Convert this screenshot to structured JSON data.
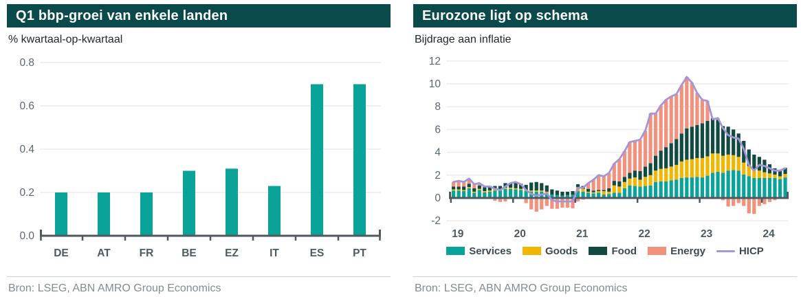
{
  "colors": {
    "header_bg": "#0a4a4a",
    "axis": "#4e585e",
    "grid": "#ececec",
    "tick_text": "#5b6770",
    "category_text": "#4e5a62",
    "subtitle_text": "#20282b",
    "source_text": "#858c90",
    "divider": "#ccd1d3"
  },
  "chart_data": [
    {
      "type": "bar",
      "title": "Q1 bbp-groei van enkele landen",
      "ylabel": "% kwartaal-op-kwartaal",
      "source": "Bron: LSEG, ABN AMRO Group Economics",
      "categories": [
        "DE",
        "AT",
        "FR",
        "BE",
        "EZ",
        "IT",
        "ES",
        "PT"
      ],
      "values": [
        0.2,
        0.2,
        0.2,
        0.3,
        0.31,
        0.23,
        0.7,
        0.7
      ],
      "ylim": [
        0,
        0.8
      ],
      "yticks": [
        0,
        0.2,
        0.4,
        0.6,
        0.8
      ],
      "bar_color": "#09a39a",
      "grid": true,
      "legend_position": "none"
    },
    {
      "type": "stacked-bar-line",
      "title": "Eurozone ligt op schema",
      "ylabel": "Bijdrage aan inflatie",
      "source": "Bron: LSEG, ABN AMRO Group Economics",
      "x_start": "2019-01",
      "x_freq": "monthly",
      "x_tick_labels": [
        "19",
        "20",
        "21",
        "22",
        "23",
        "24"
      ],
      "x_tick_month_index": [
        0,
        12,
        24,
        36,
        48,
        60
      ],
      "ylim": [
        -2,
        12
      ],
      "yticks": [
        -2,
        0,
        2,
        4,
        6,
        8,
        10,
        12
      ],
      "grid": true,
      "legend_position": "bottom",
      "series": [
        {
          "name": "Services",
          "color": "#09a39a",
          "values": [
            0.65,
            0.65,
            0.6,
            0.85,
            0.45,
            0.7,
            0.5,
            0.55,
            0.65,
            0.65,
            0.8,
            0.8,
            0.75,
            0.7,
            0.6,
            0.55,
            0.55,
            0.55,
            0.4,
            0.3,
            0.25,
            0.2,
            0.25,
            0.3,
            0.6,
            0.55,
            0.45,
            0.4,
            0.45,
            0.3,
            0.35,
            0.45,
            0.45,
            0.85,
            1.1,
            1.05,
            1.0,
            1.05,
            1.1,
            1.4,
            1.45,
            1.45,
            1.55,
            1.6,
            1.75,
            1.8,
            1.8,
            1.85,
            1.8,
            1.95,
            2.2,
            2.3,
            2.2,
            2.4,
            2.45,
            2.4,
            2.05,
            1.9,
            1.75,
            1.75,
            1.75,
            1.75,
            1.75,
            1.65,
            1.8
          ]
        },
        {
          "name": "Goods",
          "color": "#f0b600",
          "values": [
            0.1,
            0.1,
            0.1,
            0.1,
            0.1,
            0.1,
            0.1,
            0.1,
            0.1,
            0.1,
            0.1,
            0.1,
            0.1,
            0.1,
            0.1,
            0.1,
            0.1,
            0.1,
            0.15,
            -0.05,
            -0.1,
            -0.05,
            -0.05,
            -0.1,
            0.35,
            0.25,
            0.1,
            0.1,
            0.15,
            0.3,
            0.2,
            0.65,
            0.55,
            0.55,
            0.6,
            0.75,
            0.6,
            0.8,
            0.9,
            1.0,
            1.1,
            1.15,
            1.2,
            1.3,
            1.45,
            1.55,
            1.6,
            1.65,
            1.7,
            1.7,
            1.7,
            1.6,
            1.5,
            1.4,
            1.3,
            1.2,
            1.05,
            0.9,
            0.75,
            0.65,
            0.5,
            0.4,
            0.3,
            0.25,
            0.3
          ]
        },
        {
          "name": "Food",
          "color": "#114a41",
          "values": [
            0.25,
            0.25,
            0.3,
            0.3,
            0.3,
            0.3,
            0.35,
            0.4,
            0.3,
            0.3,
            0.4,
            0.4,
            0.45,
            0.45,
            0.45,
            0.7,
            0.75,
            0.65,
            0.55,
            0.45,
            0.4,
            0.35,
            0.3,
            0.3,
            0.25,
            0.25,
            0.25,
            0.15,
            0.1,
            0.1,
            0.3,
            0.4,
            0.45,
            0.45,
            0.5,
            0.6,
            0.75,
            0.9,
            1.05,
            1.3,
            1.6,
            1.85,
            2.05,
            2.25,
            2.45,
            2.75,
            2.85,
            2.9,
            3.05,
            3.1,
            3.1,
            2.95,
            2.6,
            2.45,
            2.25,
            2.05,
            1.9,
            1.45,
            1.3,
            1.2,
            1.1,
            0.8,
            0.55,
            0.55,
            0.55
          ]
        },
        {
          "name": "Energy",
          "color": "#f2927d",
          "values": [
            0.4,
            0.5,
            0.4,
            0.45,
            0.35,
            0.2,
            0.05,
            -0.05,
            -0.25,
            -0.35,
            -0.3,
            0.0,
            0.1,
            -0.05,
            -0.45,
            -1.0,
            -1.2,
            -1.0,
            -0.7,
            -0.9,
            -0.85,
            -0.8,
            -0.8,
            -0.8,
            -0.3,
            -0.15,
            0.5,
            0.95,
            1.3,
            1.2,
            1.35,
            1.5,
            1.95,
            2.25,
            2.7,
            2.6,
            2.75,
            3.15,
            4.35,
            3.7,
            3.95,
            4.15,
            4.1,
            3.95,
            4.25,
            4.5,
            3.85,
            2.8,
            2.05,
            1.75,
            -0.1,
            0.15,
            -0.2,
            -0.75,
            -0.7,
            -0.45,
            -0.7,
            -1.35,
            -1.4,
            -0.7,
            -0.55,
            -0.35,
            -0.2,
            -0.05,
            -0.05
          ]
        }
      ],
      "line": {
        "name": "HICP",
        "color": "#a395d9",
        "values": [
          1.4,
          1.5,
          1.4,
          1.7,
          1.2,
          1.3,
          1.0,
          1.0,
          0.8,
          0.7,
          1.0,
          1.3,
          1.4,
          1.2,
          0.7,
          0.35,
          0.2,
          0.3,
          0.4,
          -0.2,
          -0.3,
          -0.3,
          -0.3,
          -0.3,
          0.9,
          0.9,
          1.3,
          1.6,
          2.0,
          1.9,
          2.2,
          3.0,
          3.4,
          4.1,
          4.9,
          5.0,
          5.1,
          5.9,
          7.4,
          7.4,
          8.1,
          8.6,
          8.9,
          9.1,
          9.9,
          10.6,
          10.1,
          9.2,
          8.6,
          8.5,
          6.9,
          7.0,
          6.1,
          5.5,
          5.3,
          5.2,
          4.3,
          2.9,
          2.4,
          2.9,
          2.8,
          2.6,
          2.4,
          2.4,
          2.6
        ]
      }
    }
  ]
}
